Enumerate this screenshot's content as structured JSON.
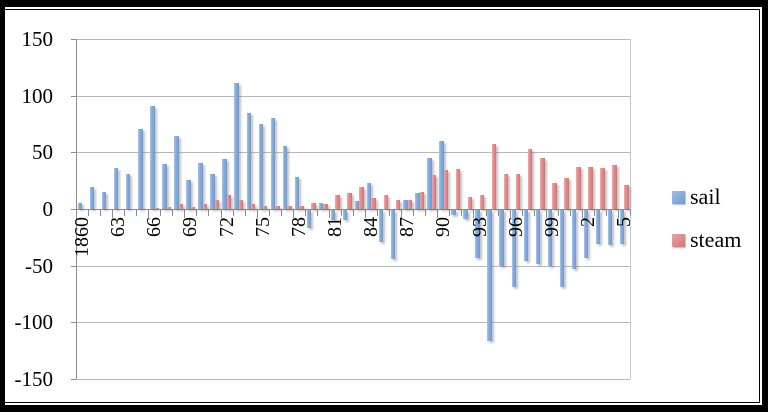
{
  "legend": {
    "position": "right",
    "items": [
      {
        "label": "sail",
        "color": "#7aa4d8"
      },
      {
        "label": "steam",
        "color": "#de7e7e"
      }
    ]
  },
  "axes": {
    "y_tick_labels": [
      "150",
      "100",
      "50",
      "0",
      "-50",
      "-100",
      "-150"
    ],
    "x_tick_labels": [
      "1860",
      "63",
      "66",
      "69",
      "72",
      "75",
      "78",
      "81",
      "84",
      "87",
      "90",
      "93",
      "96",
      "99",
      "2",
      "5"
    ]
  },
  "colors": {
    "sail_bar": "#7aa4d8",
    "steam_bar": "#de7e7e",
    "gridline": "#b9b9b9",
    "axis_line": "#8c8c8c",
    "frame": "#000000",
    "background": "#ffffff"
  },
  "chart_data": {
    "type": "bar",
    "title": "",
    "xlabel": "",
    "ylabel": "",
    "ylim": [
      -150,
      150
    ],
    "y_ticks": [
      150,
      100,
      50,
      0,
      -50,
      -100,
      -150
    ],
    "grid": true,
    "legend_position": "right",
    "x_tick_every": 3,
    "categories": [
      1860,
      1861,
      1862,
      1863,
      1864,
      1865,
      1866,
      1867,
      1868,
      1869,
      1870,
      1871,
      1872,
      1873,
      1874,
      1875,
      1876,
      1877,
      1878,
      1879,
      1880,
      1881,
      1882,
      1883,
      1884,
      1885,
      1886,
      1887,
      1888,
      1889,
      1890,
      1891,
      1892,
      1893,
      1894,
      1895,
      1896,
      1897,
      1898,
      1899,
      1900,
      1901,
      1902,
      1903,
      1904,
      1905
    ],
    "series": [
      {
        "name": "sail",
        "color": "#7aa4d8",
        "values": [
          5,
          19,
          15,
          36,
          31,
          71,
          91,
          40,
          64,
          26,
          41,
          31,
          44,
          111,
          85,
          75,
          80,
          56,
          28,
          -16,
          5,
          -9,
          -9,
          7,
          23,
          -28,
          -43,
          8,
          14,
          45,
          60,
          -4,
          -8,
          -42,
          -116,
          -49,
          -68,
          -45,
          -48,
          -49,
          -68,
          -52,
          -42,
          -30,
          -31,
          -30
        ]
      },
      {
        "name": "steam",
        "color": "#de7e7e",
        "values": [
          0,
          0,
          0,
          0,
          0,
          0,
          1,
          2,
          4,
          2,
          4,
          8,
          12,
          8,
          4,
          3,
          3,
          3,
          3,
          5,
          4,
          12,
          14,
          19,
          10,
          12,
          8,
          8,
          15,
          30,
          34,
          35,
          11,
          12,
          57,
          31,
          31,
          53,
          45,
          23,
          27,
          37,
          37,
          36,
          39,
          21
        ]
      }
    ]
  }
}
